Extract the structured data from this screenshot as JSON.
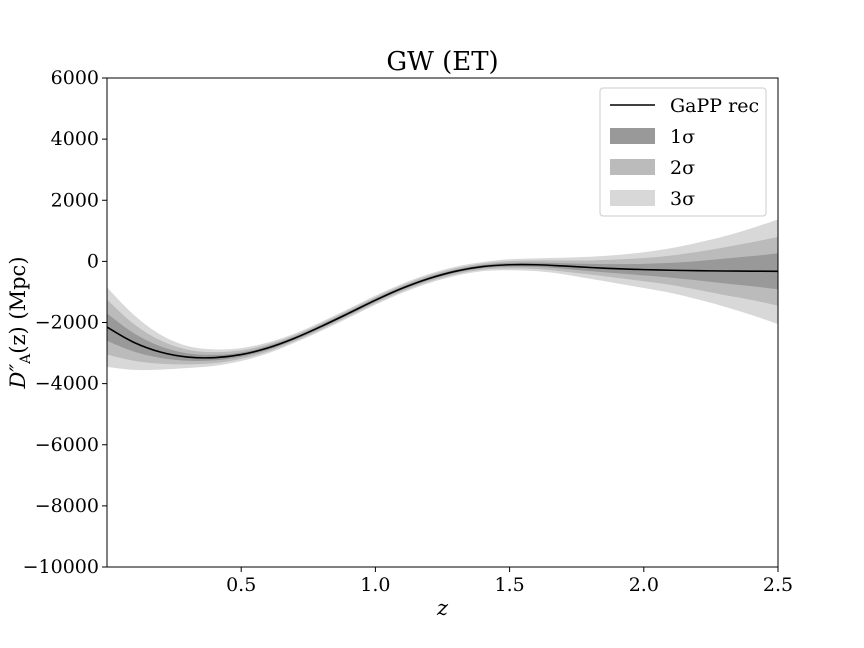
{
  "chart_data": {
    "type": "line",
    "title": "GW (ET)",
    "xlabel": "z",
    "ylabel": "D″A(z) (Mpc)",
    "ylabel_main": "D″",
    "ylabel_sub": "A",
    "ylabel_rest": "(z) (Mpc)",
    "xlim": [
      0.0,
      2.5
    ],
    "ylim": [
      -10000,
      6000
    ],
    "xticks": [
      0.5,
      1.0,
      1.5,
      2.0,
      2.5
    ],
    "xtick_labels": [
      "0.5",
      "1.0",
      "1.5",
      "2.0",
      "2.5"
    ],
    "yticks": [
      6000,
      4000,
      2000,
      0,
      -2000,
      -4000,
      -6000,
      -8000,
      -10000
    ],
    "ytick_labels": [
      "6000",
      "4000",
      "2000",
      "0",
      "−2000",
      "−4000",
      "−6000",
      "−8000",
      "−10000"
    ],
    "grid": false,
    "legend_position": "top-right",
    "x": [
      0.0,
      0.1,
      0.2,
      0.3,
      0.4,
      0.5,
      0.6,
      0.7,
      0.8,
      0.9,
      1.0,
      1.1,
      1.2,
      1.3,
      1.4,
      1.5,
      1.6,
      1.7,
      1.8,
      1.9,
      2.0,
      2.1,
      2.2,
      2.3,
      2.4,
      2.5
    ],
    "series": [
      {
        "name": "GaPP rec",
        "kind": "line",
        "color": "#000000",
        "values": [
          -2150,
          -2650,
          -2970,
          -3130,
          -3150,
          -3050,
          -2830,
          -2510,
          -2120,
          -1700,
          -1270,
          -880,
          -560,
          -320,
          -170,
          -110,
          -110,
          -150,
          -200,
          -240,
          -270,
          -290,
          -305,
          -315,
          -320,
          -325
        ]
      },
      {
        "name": "1σ",
        "kind": "band",
        "color": "#999999",
        "upper": [
          -1700,
          -2350,
          -2780,
          -3010,
          -3060,
          -2980,
          -2770,
          -2460,
          -2070,
          -1650,
          -1220,
          -830,
          -510,
          -270,
          -120,
          -50,
          -40,
          -60,
          -80,
          -90,
          -80,
          -50,
          10,
          90,
          170,
          260
        ],
        "lower": [
          -2600,
          -2950,
          -3160,
          -3250,
          -3240,
          -3120,
          -2890,
          -2560,
          -2170,
          -1750,
          -1320,
          -930,
          -610,
          -370,
          -220,
          -170,
          -180,
          -240,
          -320,
          -390,
          -460,
          -530,
          -620,
          -720,
          -810,
          -910
        ]
      },
      {
        "name": "2σ",
        "kind": "band",
        "color": "#bbbbbb",
        "upper": [
          -1250,
          -2050,
          -2590,
          -2890,
          -2970,
          -2910,
          -2710,
          -2410,
          -2020,
          -1600,
          -1170,
          -780,
          -460,
          -220,
          -70,
          10,
          30,
          30,
          30,
          60,
          110,
          190,
          310,
          460,
          620,
          800
        ],
        "lower": [
          -3050,
          -3250,
          -3350,
          -3370,
          -3330,
          -3190,
          -2950,
          -2610,
          -2220,
          -1800,
          -1370,
          -980,
          -660,
          -420,
          -270,
          -230,
          -250,
          -330,
          -430,
          -540,
          -650,
          -770,
          -930,
          -1100,
          -1260,
          -1450
        ]
      },
      {
        "name": "3σ",
        "kind": "band",
        "color": "#d8d8d8",
        "upper": [
          -850,
          -1750,
          -2400,
          -2770,
          -2880,
          -2840,
          -2650,
          -2360,
          -1970,
          -1550,
          -1120,
          -730,
          -410,
          -170,
          -20,
          70,
          100,
          120,
          150,
          210,
          300,
          430,
          610,
          820,
          1080,
          1370
        ],
        "lower": [
          -3450,
          -3550,
          -3540,
          -3490,
          -3420,
          -3260,
          -3010,
          -2660,
          -2270,
          -1850,
          -1420,
          -1030,
          -710,
          -470,
          -320,
          -290,
          -320,
          -420,
          -570,
          -720,
          -870,
          -1030,
          -1240,
          -1480,
          -1750,
          -2050
        ]
      }
    ]
  }
}
